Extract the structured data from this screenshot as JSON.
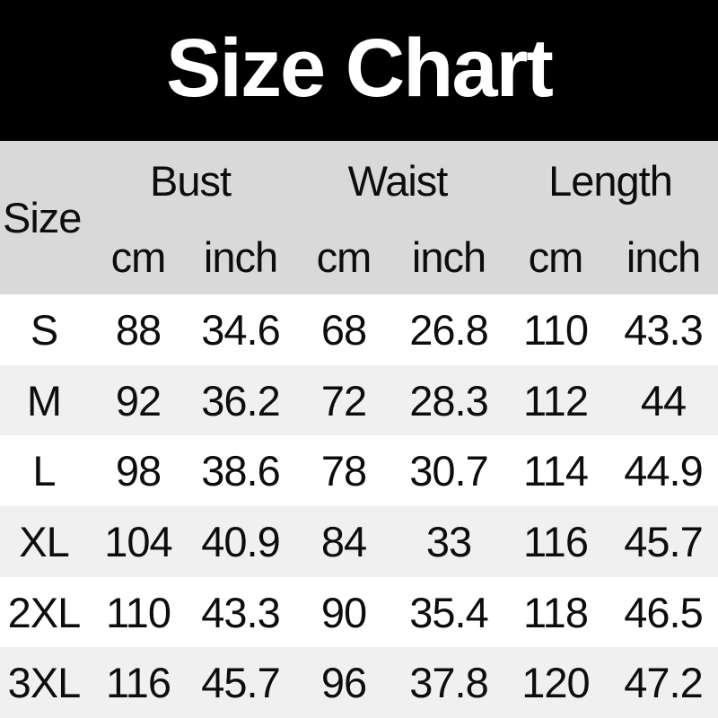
{
  "banner": {
    "title": "Size Chart"
  },
  "header": {
    "size_label": "Size",
    "groups": [
      "Bust",
      "Waist",
      "Length"
    ],
    "units": [
      "cm",
      "inch",
      "cm",
      "inch",
      "cm",
      "inch"
    ]
  },
  "chart_data": {
    "type": "table",
    "title": "Size Chart",
    "columns": [
      "Size",
      "Bust (cm)",
      "Bust (inch)",
      "Waist (cm)",
      "Waist (inch)",
      "Length (cm)",
      "Length (inch)"
    ],
    "rows": [
      [
        "S",
        88,
        34.6,
        68,
        26.8,
        110,
        43.3
      ],
      [
        "M",
        92,
        36.2,
        72,
        28.3,
        112,
        44
      ],
      [
        "L",
        98,
        38.6,
        78,
        30.7,
        114,
        44.9
      ],
      [
        "XL",
        104,
        40.9,
        84,
        33,
        116,
        45.7
      ],
      [
        "2XL",
        110,
        43.3,
        90,
        35.4,
        118,
        46.5
      ],
      [
        "3XL",
        116,
        45.7,
        96,
        37.8,
        120,
        47.2
      ]
    ],
    "layout": {
      "legend": "none",
      "grid": "off",
      "row_striping": [
        "#ffffff",
        "#f0f0f0"
      ]
    }
  },
  "colors": {
    "banner_bg": "#000000",
    "title_text": "#ffffff",
    "header_bg": "#d9d9d9",
    "row_even_bg": "#ffffff",
    "row_odd_bg": "#f0f0f0",
    "table_text": "#0d0d0d"
  }
}
